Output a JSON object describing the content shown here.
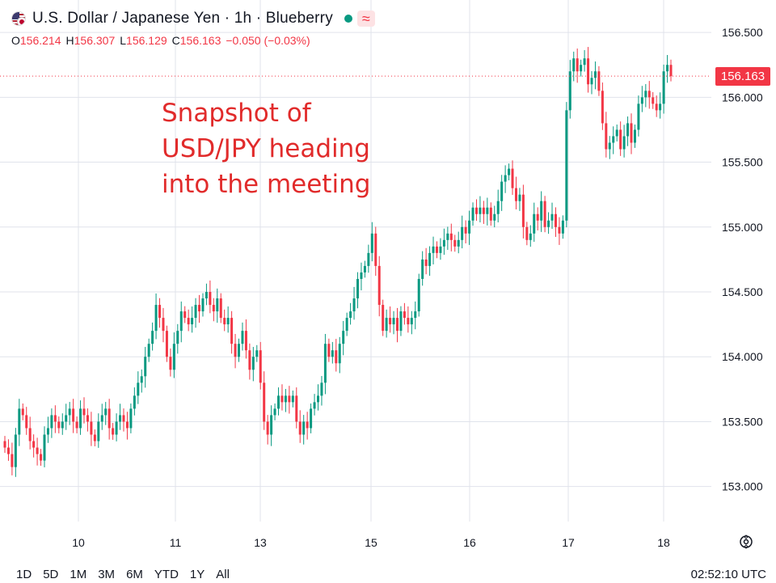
{
  "header": {
    "title": "U.S. Dollar / Japanese Yen · 1h · Blueberry",
    "ohlc": [
      {
        "label": "O",
        "value": "156.214"
      },
      {
        "label": "H",
        "value": "156.307"
      },
      {
        "label": "L",
        "value": "156.129"
      },
      {
        "label": "C",
        "value": "156.163"
      },
      {
        "label": "",
        "value": "−0.050 (−0.03%)"
      }
    ],
    "icons": [
      "us-jp-flag-icon",
      "market-open-dot-icon",
      "wave-icon"
    ]
  },
  "annotation": "Snapshot of\nUSD/JPY heading\ninto the meeting",
  "current_price": "156.163",
  "bottom_bar": {
    "ranges": [
      "1D",
      "5D",
      "1M",
      "3M",
      "6M",
      "YTD",
      "1Y",
      "All"
    ],
    "clock": "02:52:10 UTC"
  },
  "colors": {
    "up": "#089981",
    "down": "#f23645",
    "grid": "#e0e3eb",
    "annotation": "#e12b2b"
  },
  "chart_data": {
    "type": "candlestick",
    "title": "U.S. Dollar / Japanese Yen · 1h · Blueberry",
    "ylim": [
      152.73,
      156.75
    ],
    "y_ticks": [
      "153.000",
      "153.500",
      "154.000",
      "154.500",
      "155.000",
      "155.500",
      "156.000",
      "156.500"
    ],
    "x_tick_labels": [
      "10",
      "11",
      "13",
      "15",
      "16",
      "17",
      "18"
    ],
    "grid": true,
    "last_price": 156.163,
    "closes": [
      153.3,
      153.25,
      153.15,
      153.4,
      153.6,
      153.55,
      153.45,
      153.35,
      153.3,
      153.25,
      153.2,
      153.4,
      153.45,
      153.55,
      153.5,
      153.45,
      153.5,
      153.55,
      153.6,
      153.5,
      153.45,
      153.6,
      153.55,
      153.5,
      153.4,
      153.35,
      153.5,
      153.55,
      153.6,
      153.45,
      153.4,
      153.5,
      153.55,
      153.5,
      153.45,
      153.6,
      153.7,
      153.8,
      153.85,
      154.0,
      154.1,
      154.2,
      154.4,
      154.3,
      154.2,
      154.0,
      153.9,
      154.1,
      154.2,
      154.35,
      154.3,
      154.25,
      154.3,
      154.4,
      154.35,
      154.45,
      154.5,
      154.4,
      154.35,
      154.45,
      154.3,
      154.25,
      154.3,
      154.1,
      154.0,
      154.1,
      154.2,
      154.05,
      153.9,
      154.0,
      154.05,
      153.8,
      153.5,
      153.4,
      153.55,
      153.6,
      153.7,
      153.65,
      153.7,
      153.65,
      153.7,
      153.5,
      153.4,
      153.5,
      153.45,
      153.6,
      153.65,
      153.7,
      153.8,
      154.1,
      154.0,
      154.05,
      153.95,
      154.1,
      154.2,
      154.3,
      154.35,
      154.45,
      154.6,
      154.65,
      154.7,
      154.8,
      154.95,
      154.7,
      154.4,
      154.2,
      154.3,
      154.25,
      154.3,
      154.2,
      154.35,
      154.3,
      154.25,
      154.3,
      154.35,
      154.6,
      154.75,
      154.7,
      154.8,
      154.85,
      154.8,
      154.85,
      154.9,
      154.95,
      154.9,
      154.85,
      154.9,
      155.0,
      154.95,
      155.05,
      155.15,
      155.1,
      155.15,
      155.1,
      155.15,
      155.05,
      155.1,
      155.2,
      155.35,
      155.4,
      155.45,
      155.3,
      155.2,
      155.25,
      155.0,
      154.9,
      154.95,
      155.1,
      155.05,
      155.2,
      155.0,
      155.05,
      155.1,
      155.0,
      154.95,
      155.05,
      155.9,
      156.2,
      156.3,
      156.2,
      156.25,
      156.3,
      156.1,
      156.15,
      156.2,
      156.05,
      155.8,
      155.6,
      155.65,
      155.7,
      155.75,
      155.6,
      155.7,
      155.8,
      155.65,
      155.75,
      155.95,
      156.0,
      156.05,
      156.0,
      155.95,
      155.9,
      155.95,
      156.2,
      156.25,
      156.163
    ]
  }
}
